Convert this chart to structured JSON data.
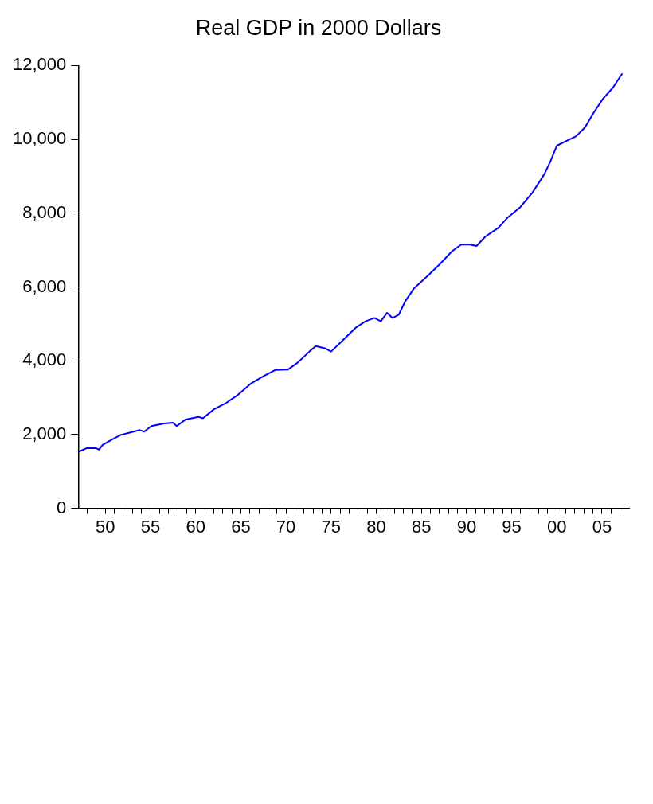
{
  "chart_data": {
    "type": "line",
    "title": "Real GDP in 2000 Dollars",
    "x": [
      1947.1,
      1947.9,
      1949,
      1949.3,
      1949.7,
      1950.7,
      1951.7,
      1952.7,
      1953.8,
      1954.3,
      1955.1,
      1956.5,
      1957.5,
      1957.9,
      1958.9,
      1960.3,
      1960.8,
      1962,
      1963.4,
      1964.7,
      1966.1,
      1967.5,
      1968.8,
      1970.2,
      1971.2,
      1972.6,
      1973.3,
      1974.3,
      1975,
      1976.4,
      1977.7,
      1978.8,
      1979.8,
      1980.5,
      1981.2,
      1981.8,
      1982.5,
      1983.2,
      1984.2,
      1985.6,
      1987,
      1988.4,
      1989.4,
      1990.4,
      1991.1,
      1992.1,
      1993.5,
      1994.5,
      1995.9,
      1997.3,
      1998.6,
      1999.3,
      2000,
      2001,
      2002.1,
      2003.1,
      2004.1,
      2005.1,
      2006.2,
      2007.2
    ],
    "series": [
      {
        "color": "#0000ff",
        "values": [
          1540,
          1630,
          1630,
          1590,
          1720,
          1860,
          1990,
          2050,
          2120,
          2080,
          2230,
          2300,
          2320,
          2230,
          2410,
          2480,
          2440,
          2680,
          2860,
          3080,
          3380,
          3580,
          3750,
          3760,
          3930,
          4250,
          4400,
          4340,
          4250,
          4580,
          4890,
          5070,
          5160,
          5070,
          5300,
          5160,
          5250,
          5610,
          5970,
          6280,
          6610,
          6970,
          7150,
          7150,
          7110,
          7370,
          7600,
          7870,
          8150,
          8560,
          9050,
          9410,
          9830,
          9950,
          10080,
          10320,
          10730,
          11100,
          11400,
          11770
        ]
      }
    ],
    "xlim": [
      1947,
      2008
    ],
    "xticks": [
      {
        "value": 1948,
        "label": null
      },
      {
        "value": 1949,
        "label": null
      },
      {
        "value": 1950,
        "label": "50"
      },
      {
        "value": 1951,
        "label": null
      },
      {
        "value": 1952,
        "label": null
      },
      {
        "value": 1953,
        "label": null
      },
      {
        "value": 1954,
        "label": null
      },
      {
        "value": 1955,
        "label": "55"
      },
      {
        "value": 1956,
        "label": null
      },
      {
        "value": 1957,
        "label": null
      },
      {
        "value": 1958,
        "label": null
      },
      {
        "value": 1959,
        "label": null
      },
      {
        "value": 1960,
        "label": "60"
      },
      {
        "value": 1961,
        "label": null
      },
      {
        "value": 1962,
        "label": null
      },
      {
        "value": 1963,
        "label": null
      },
      {
        "value": 1964,
        "label": null
      },
      {
        "value": 1965,
        "label": "65"
      },
      {
        "value": 1966,
        "label": null
      },
      {
        "value": 1967,
        "label": null
      },
      {
        "value": 1968,
        "label": null
      },
      {
        "value": 1969,
        "label": null
      },
      {
        "value": 1970,
        "label": "70"
      },
      {
        "value": 1971,
        "label": null
      },
      {
        "value": 1972,
        "label": null
      },
      {
        "value": 1973,
        "label": null
      },
      {
        "value": 1974,
        "label": null
      },
      {
        "value": 1975,
        "label": "75"
      },
      {
        "value": 1976,
        "label": null
      },
      {
        "value": 1977,
        "label": null
      },
      {
        "value": 1978,
        "label": null
      },
      {
        "value": 1979,
        "label": null
      },
      {
        "value": 1980,
        "label": "80"
      },
      {
        "value": 1981,
        "label": null
      },
      {
        "value": 1982,
        "label": null
      },
      {
        "value": 1983,
        "label": null
      },
      {
        "value": 1984,
        "label": null
      },
      {
        "value": 1985,
        "label": "85"
      },
      {
        "value": 1986,
        "label": null
      },
      {
        "value": 1987,
        "label": null
      },
      {
        "value": 1988,
        "label": null
      },
      {
        "value": 1989,
        "label": null
      },
      {
        "value": 1990,
        "label": "90"
      },
      {
        "value": 1991,
        "label": null
      },
      {
        "value": 1992,
        "label": null
      },
      {
        "value": 1993,
        "label": null
      },
      {
        "value": 1994,
        "label": null
      },
      {
        "value": 1995,
        "label": "95"
      },
      {
        "value": 1996,
        "label": null
      },
      {
        "value": 1997,
        "label": null
      },
      {
        "value": 1998,
        "label": null
      },
      {
        "value": 1999,
        "label": null
      },
      {
        "value": 2000,
        "label": "00"
      },
      {
        "value": 2001,
        "label": null
      },
      {
        "value": 2002,
        "label": null
      },
      {
        "value": 2003,
        "label": null
      },
      {
        "value": 2004,
        "label": null
      },
      {
        "value": 2005,
        "label": "05"
      },
      {
        "value": 2006,
        "label": null
      },
      {
        "value": 2007,
        "label": null
      }
    ],
    "ylim": [
      0,
      12000
    ],
    "yticks": [
      {
        "value": 0,
        "label": "0"
      },
      {
        "value": 2000,
        "label": "2,000"
      },
      {
        "value": 4000,
        "label": "4,000"
      },
      {
        "value": 6000,
        "label": "6,000"
      },
      {
        "value": 8000,
        "label": "8,000"
      },
      {
        "value": 10000,
        "label": "10,000"
      },
      {
        "value": 12000,
        "label": "12,000"
      }
    ],
    "grid": false,
    "legend": false,
    "marker": "none",
    "line_style": "solid"
  }
}
